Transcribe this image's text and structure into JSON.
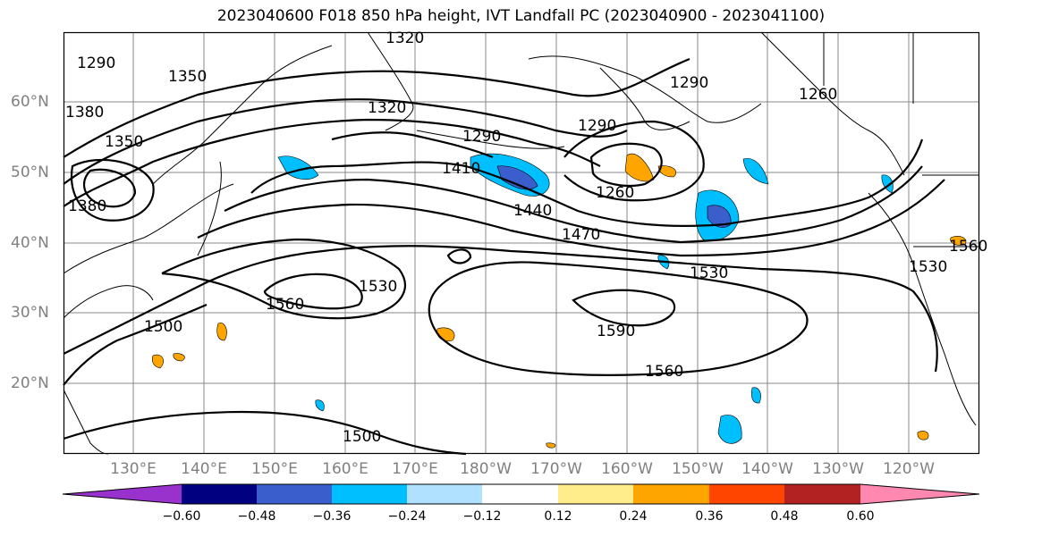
{
  "title": "2023040600 F018 850 hPa height, IVT Landfall PC (2023040900 - 2023041100)",
  "lat_labels": [
    "60°N",
    "50°N",
    "40°N",
    "30°N",
    "20°N"
  ],
  "lon_labels": [
    "130°E",
    "140°E",
    "150°E",
    "160°E",
    "170°E",
    "180°W",
    "170°W",
    "160°W",
    "150°W",
    "140°W",
    "130°W",
    "120°W"
  ],
  "contour_labels": [
    "1290",
    "1320",
    "1350",
    "1380",
    "1350",
    "1380",
    "1320",
    "1290",
    "1410",
    "1290",
    "1260",
    "1290",
    "1260",
    "1440",
    "1470",
    "1530",
    "1560",
    "1530",
    "1590",
    "1560",
    "1500",
    "1500",
    "1530",
    "1560"
  ],
  "colorbar": {
    "ticks": [
      "−0.60",
      "−0.48",
      "−0.36",
      "−0.24",
      "−0.12",
      "0.12",
      "0.24",
      "0.36",
      "0.48",
      "0.60"
    ],
    "colors": [
      "#9932cc",
      "#000080",
      "#3a5fcd",
      "#00bfff",
      "#b0e2ff",
      "#ffffff",
      "#ffec8b",
      "#ffa500",
      "#ff4500",
      "#b22222",
      "#ff88b0"
    ]
  },
  "chart_data": {
    "type": "map",
    "title": "2023040600 F018 850 hPa height, IVT Landfall PC (2023040900 - 2023041100)",
    "field": "850 hPa geopotential height contours (m) with IVT landfall PC shading",
    "contour_levels": [
      1260,
      1290,
      1320,
      1350,
      1380,
      1410,
      1440,
      1470,
      1500,
      1530,
      1560,
      1590
    ],
    "lat_ticks": [
      "60°N",
      "50°N",
      "40°N",
      "30°N",
      "20°N"
    ],
    "lon_ticks": [
      "130°E",
      "140°E",
      "150°E",
      "160°E",
      "170°E",
      "180°W",
      "170°W",
      "160°W",
      "150°W",
      "140°W",
      "130°W",
      "120°W"
    ],
    "colorbar_bounds": [
      -0.6,
      -0.48,
      -0.36,
      -0.24,
      -0.12,
      0.12,
      0.24,
      0.36,
      0.48,
      0.6
    ]
  }
}
